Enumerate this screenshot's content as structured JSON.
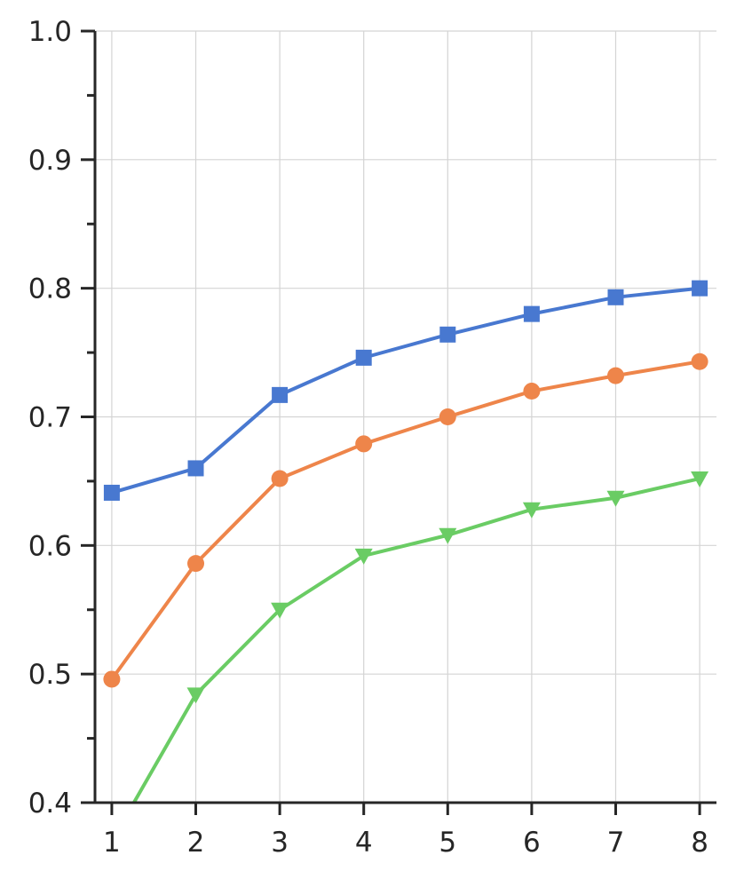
{
  "chart_data": {
    "type": "line",
    "title": "",
    "xlabel": "",
    "ylabel": "",
    "x": [
      1,
      2,
      3,
      4,
      5,
      6,
      7,
      8
    ],
    "xlim": [
      0.8,
      8.2
    ],
    "ylim": [
      0.4,
      1.0
    ],
    "x_ticks": [
      "1",
      "2",
      "3",
      "4",
      "5",
      "6",
      "7",
      "8"
    ],
    "y_ticks": [
      "0.4",
      "0.5",
      "0.6",
      "0.7",
      "0.8",
      "0.9",
      "1.0"
    ],
    "y_tick_values": [
      0.4,
      0.5,
      0.6,
      0.7,
      0.8,
      0.9,
      1.0
    ],
    "y_minor_tick_values": [
      0.45,
      0.55,
      0.65,
      0.75,
      0.85,
      0.95
    ],
    "grid": true,
    "legend": "none",
    "series": [
      {
        "color": "#4878d0",
        "marker": "square",
        "values": [
          0.641,
          0.66,
          0.717,
          0.746,
          0.764,
          0.78,
          0.793,
          0.8
        ]
      },
      {
        "color": "#ee854a",
        "marker": "circle",
        "values": [
          0.496,
          0.586,
          0.652,
          0.679,
          0.7,
          0.72,
          0.732,
          0.743
        ]
      },
      {
        "color": "#6acc64",
        "marker": "triangle-down",
        "values": [
          0.37,
          0.484,
          0.55,
          0.592,
          0.608,
          0.628,
          0.637,
          0.652
        ]
      }
    ]
  }
}
